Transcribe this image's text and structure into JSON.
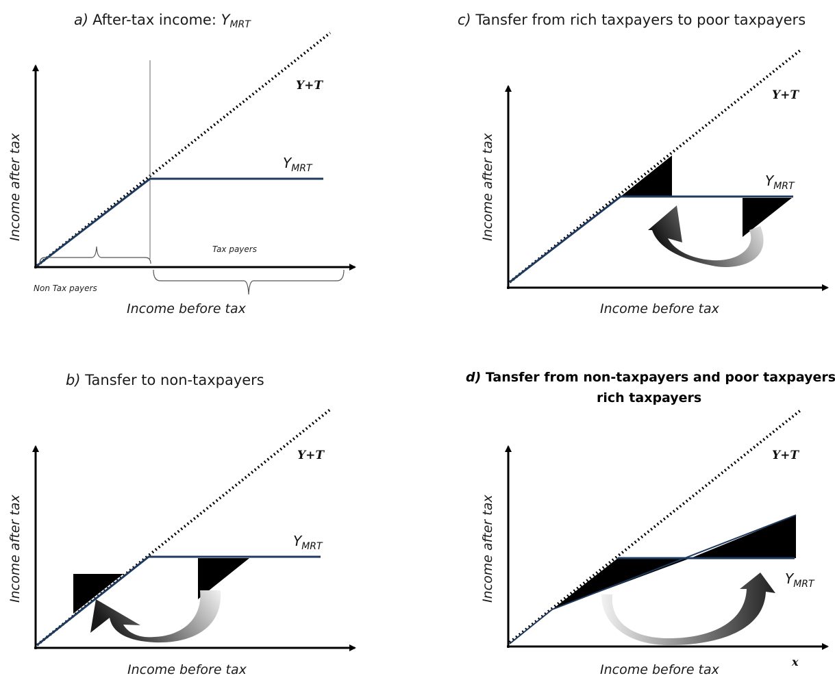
{
  "panels": {
    "a": {
      "title_prefix": "a)",
      "title_text": "After-tax income: ",
      "title_y": "Y",
      "title_sub": "MRT",
      "ylabel": "Income after tax",
      "xlabel": "Income before tax",
      "diagonal_label": "Y+T",
      "curve_label": "Y",
      "curve_sub": "MRT",
      "non_tax_payers": "Non Tax payers",
      "tax_payers": "Tax payers"
    },
    "b": {
      "title_prefix": "b)",
      "title_text": " Tansfer  to non-taxpayers",
      "ylabel": "Income after tax",
      "xlabel": "Income before tax",
      "diagonal_label": "Y+T",
      "curve_label": "Y",
      "curve_sub": "MRT"
    },
    "c": {
      "title_prefix": "c)",
      "title_text": " Tansfer  from rich taxpayers to poor taxpayers",
      "ylabel": "Income after tax",
      "xlabel": "Income before tax",
      "diagonal_label": "Y+T",
      "curve_label": "Y",
      "curve_sub": "MRT"
    },
    "d": {
      "title_prefix": "d)",
      "title_line1": " Tansfer from non-taxpayers and poor taxpayers to",
      "title_line2": "rich taxpayers",
      "ylabel": "Income after tax",
      "xlabel": "Income before tax",
      "diagonal_label": "Y+T",
      "curve_label": "Y",
      "curve_sub": "MRT",
      "x_marker": "x"
    }
  },
  "colors": {
    "axis": "#000000",
    "mrt_line": "#1f3a5f",
    "shaded_area": "#000000",
    "arrow_dark": "#222222",
    "arrow_light": "#e6e6e6"
  }
}
